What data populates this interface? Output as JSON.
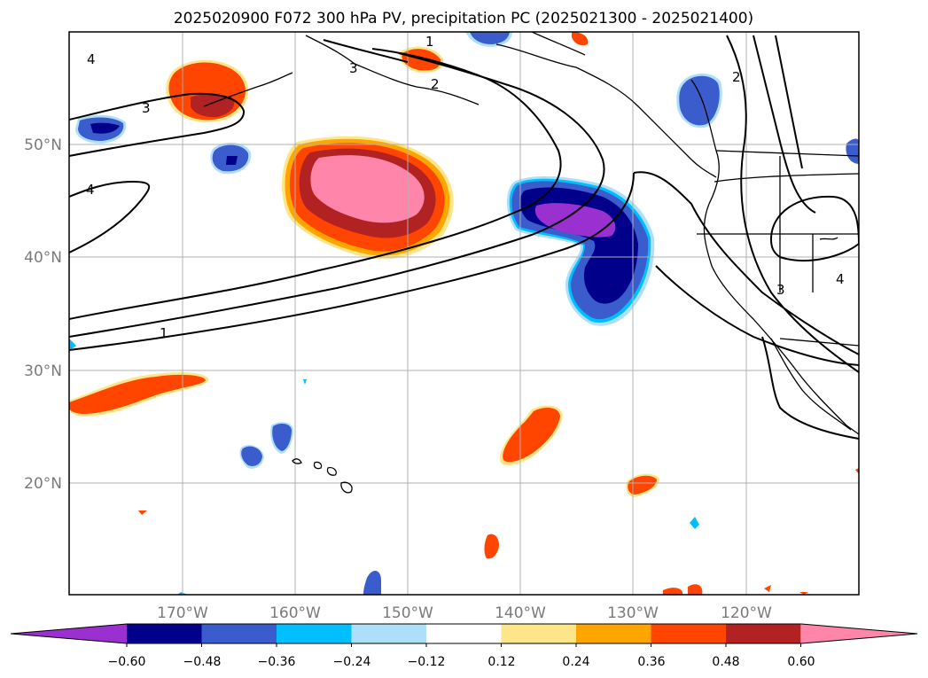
{
  "title": "2025020900 F072 300 hPa PV, precipitation PC (2025021300 - 2025021400)",
  "lon_labels": [
    "170°W",
    "160°W",
    "150°W",
    "140°W",
    "130°W",
    "120°W"
  ],
  "lat_labels": [
    "50°N",
    "40°N",
    "30°N",
    "20°N"
  ],
  "contour_labels": [
    "4",
    "3",
    "4",
    "1",
    "2",
    "1",
    "2",
    "3",
    "4",
    "3"
  ],
  "colorbar": {
    "ticks": [
      "−0.60",
      "−0.48",
      "−0.36",
      "−0.24",
      "−0.12",
      "0.12",
      "0.24",
      "0.36",
      "0.48",
      "0.60"
    ],
    "colors": [
      "#9b30d0",
      "#00008b",
      "#3a5ccc",
      "#00bfff",
      "#ade0f8",
      "#ffffff",
      "#fde68a",
      "#ffa500",
      "#ff4500",
      "#b22222",
      "#ff85aa"
    ]
  },
  "colors": {
    "pink": "#ff85aa",
    "darkred": "#b22222",
    "orangered": "#ff4500",
    "orange": "#ffa500",
    "yellow": "#fde68a",
    "purple": "#9b30d0",
    "navy": "#00008b",
    "royal": "#3a5ccc",
    "sky": "#00bfff",
    "lightblue": "#ade0f8"
  }
}
